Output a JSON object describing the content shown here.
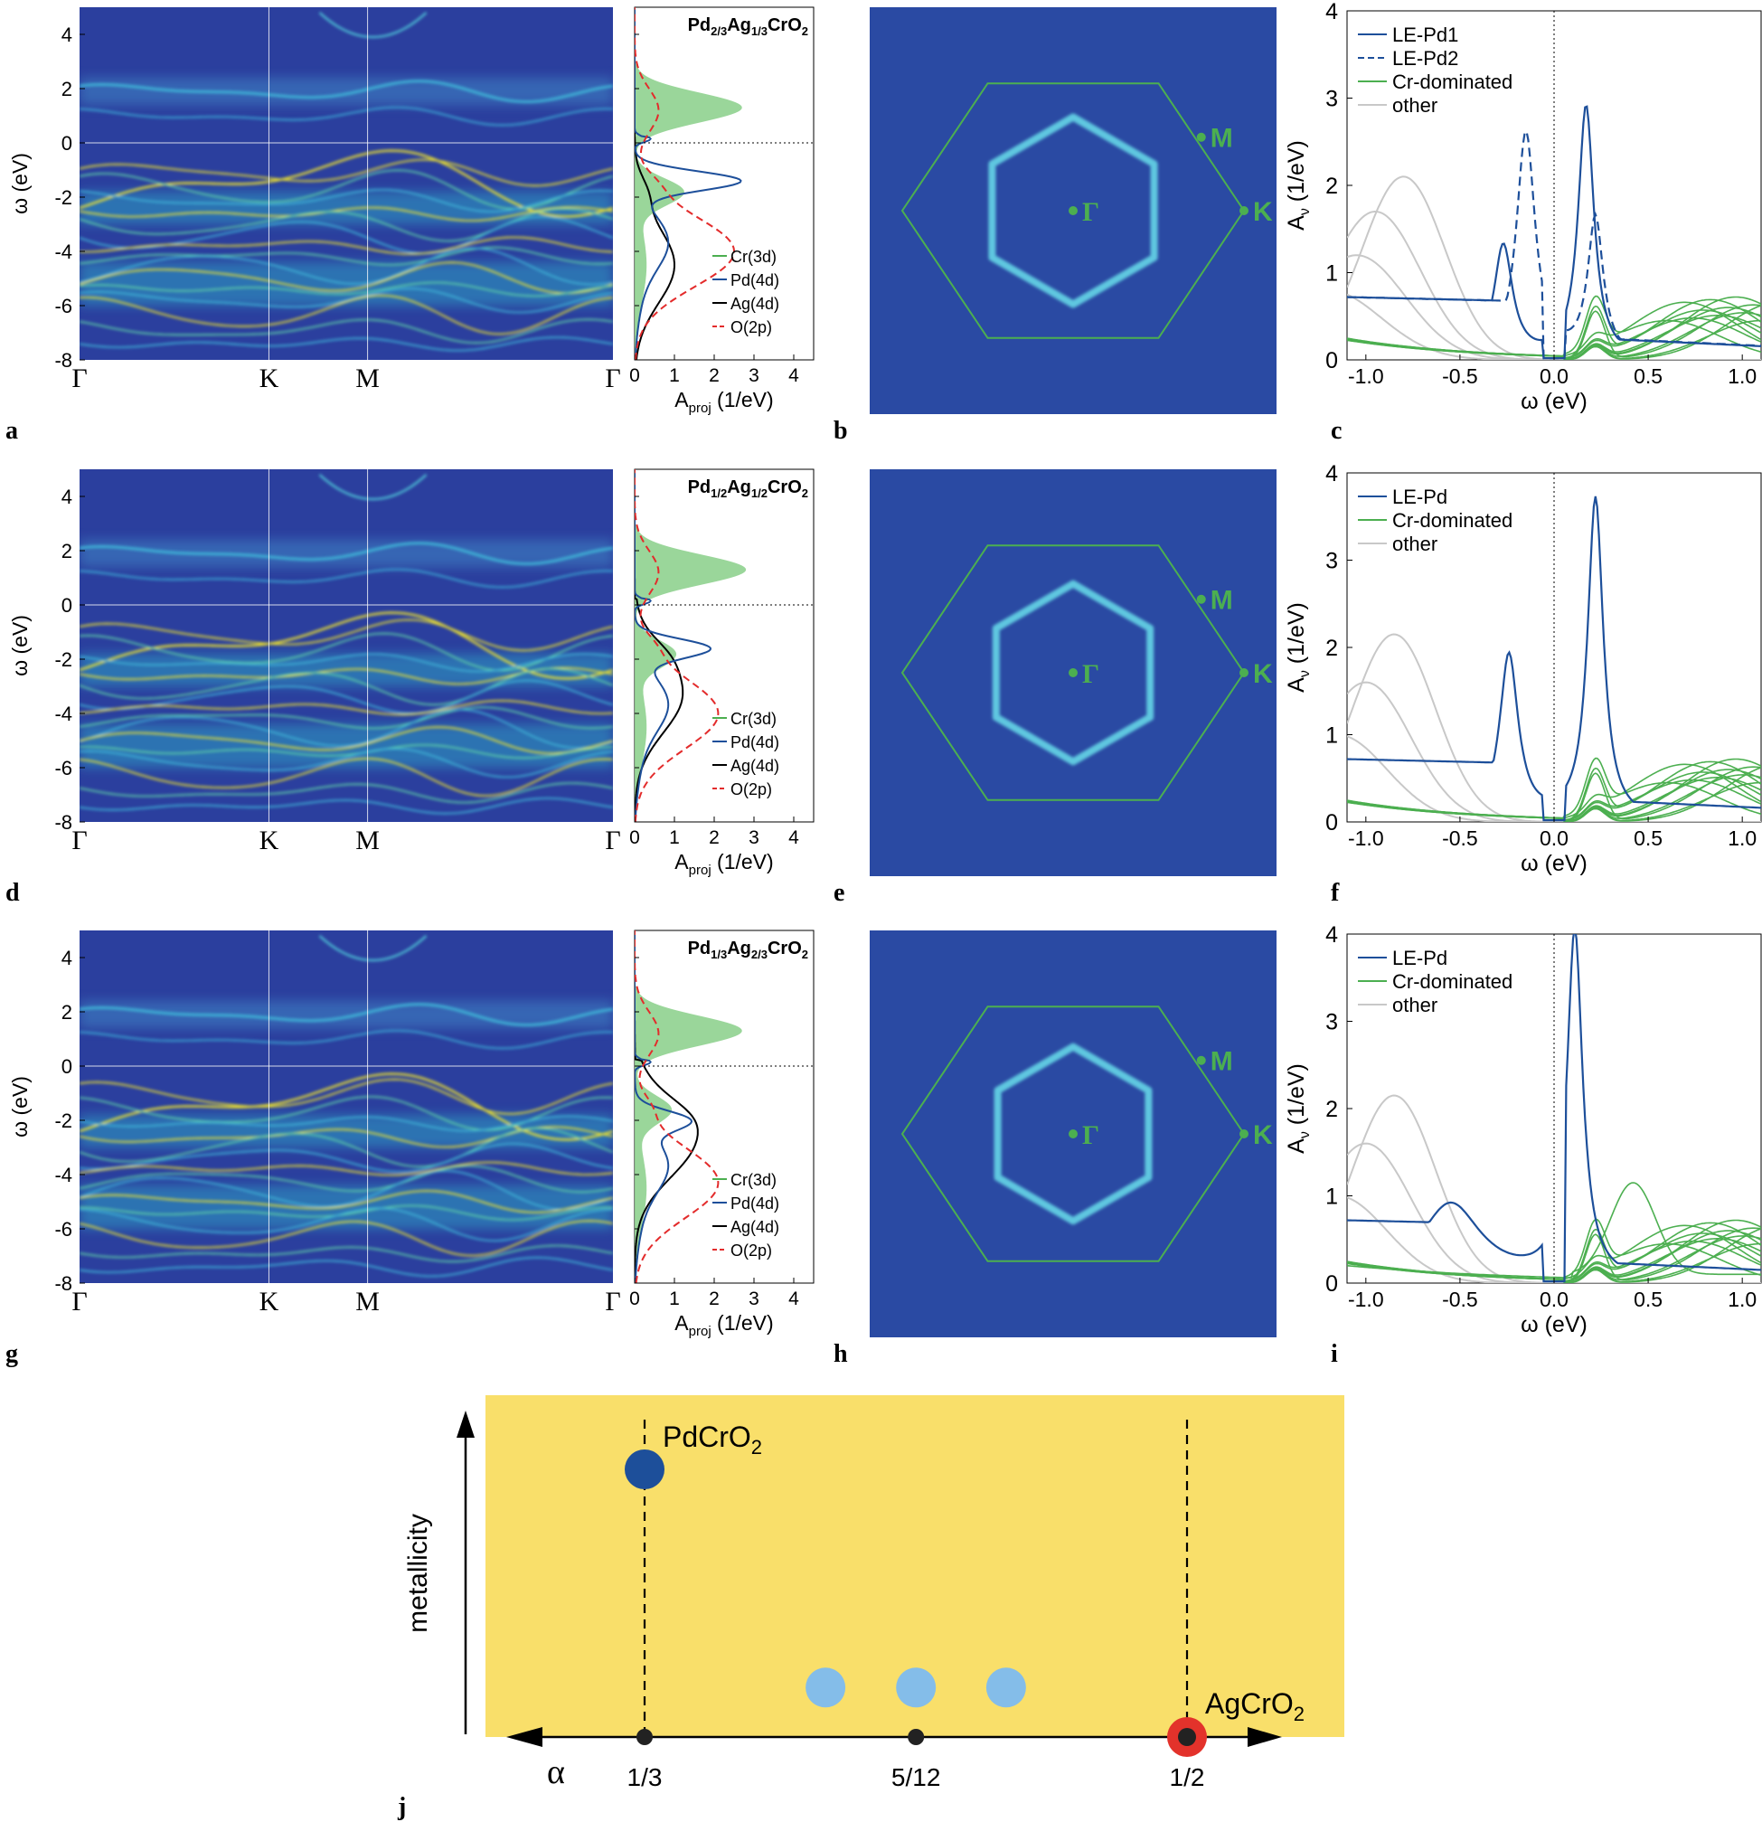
{
  "colors": {
    "band_bg": "#2b3f9e",
    "band_mid": "#3fb6d8",
    "band_hot": "#f2e62a",
    "pd": "#1d4f9a",
    "cr": "#4caf50",
    "cr_fill": "#8fd18f",
    "other": "#c8c8c8",
    "o2p": "#e32b2b",
    "bz": "#4caf50",
    "j_bg": "#f9df6a",
    "pd_marker": "#1d4f9a",
    "mid_marker": "#84bde9",
    "ag_marker": "#e3322b"
  },
  "chart_data": [
    {
      "panel": "a",
      "type": "heatmap",
      "ylabel": "ω (eV)",
      "ylim": [
        -8,
        5
      ],
      "yticks": [
        "4",
        "2",
        "0",
        "-2",
        "-4",
        "-6",
        "-8"
      ],
      "kpoints": [
        "Γ",
        "K",
        "M",
        "Γ"
      ]
    },
    {
      "panel": "a-dos",
      "type": "line",
      "title": "Pd2/3Ag1/3CrO2",
      "title_parts": [
        "Pd",
        "2/3",
        "Ag",
        "1/3",
        "CrO",
        "2"
      ],
      "xlabel": "A",
      "xlabel_sub": "proj",
      "xlabel_unit": " (1/eV)",
      "xticks": [
        "0",
        "1",
        "2",
        "3",
        "4"
      ],
      "xlim": [
        0,
        4.5
      ],
      "legend": [
        "Cr(3d)",
        "Pd(4d)",
        "Ag(4d)",
        "O(2p)"
      ],
      "peaks": {
        "cr_occ": [
          -1.8,
          1.2
        ],
        "cr_unocc": [
          1.3,
          2.7
        ],
        "pd": [
          -1.4,
          2.6
        ],
        "o2p": [
          -4.0,
          2.5
        ],
        "ag": [
          -4.5,
          1.0
        ]
      }
    },
    {
      "panel": "b",
      "type": "heatmap",
      "points": [
        "Γ",
        "M",
        "K"
      ]
    },
    {
      "panel": "c",
      "type": "line",
      "xlabel": "ω (eV)",
      "ylabel": "A",
      "ylabel_sub": "ν",
      "ylabel_unit": " (1/eV)",
      "xlim": [
        -1.1,
        1.1
      ],
      "ylim": [
        0,
        4
      ],
      "xticks": [
        "-1.0",
        "-0.5",
        "0.0",
        "0.5",
        "1.0"
      ],
      "yticks": [
        "0",
        "1",
        "2",
        "3",
        "4"
      ],
      "legend": [
        "LE-Pd1",
        "LE-Pd2",
        "Cr-dominated",
        "other"
      ],
      "series": [
        {
          "name": "LE-Pd1",
          "peaks": [
            [
              -0.27,
              1.3
            ],
            [
              0.17,
              2.9
            ]
          ]
        },
        {
          "name": "LE-Pd2",
          "peaks": [
            [
              -0.15,
              2.6
            ],
            [
              0.22,
              1.6
            ]
          ]
        }
      ]
    },
    {
      "panel": "d",
      "type": "heatmap",
      "ylabel": "ω (eV)",
      "ylim": [
        -8,
        5
      ],
      "yticks": [
        "4",
        "2",
        "0",
        "-2",
        "-4",
        "-6",
        "-8"
      ],
      "kpoints": [
        "Γ",
        "K",
        "M",
        "Γ"
      ]
    },
    {
      "panel": "d-dos",
      "type": "line",
      "title": "Pd1/2Ag1/2CrO2",
      "title_parts": [
        "Pd",
        "1/2",
        "Ag",
        "1/2",
        "CrO",
        "2"
      ],
      "xlabel": "A",
      "xlabel_sub": "proj",
      "xlabel_unit": " (1/eV)",
      "xticks": [
        "0",
        "1",
        "2",
        "3",
        "4"
      ],
      "xlim": [
        0,
        4.5
      ],
      "legend": [
        "Cr(3d)",
        "Pd(4d)",
        "Ag(4d)",
        "O(2p)"
      ],
      "peaks": {
        "cr_occ": [
          -1.8,
          1.0
        ],
        "cr_unocc": [
          1.3,
          2.8
        ],
        "pd": [
          -1.6,
          1.8
        ],
        "o2p": [
          -4.0,
          2.1
        ],
        "ag": [
          -3.3,
          1.2
        ]
      }
    },
    {
      "panel": "e",
      "type": "heatmap",
      "points": [
        "Γ",
        "M",
        "K"
      ]
    },
    {
      "panel": "f",
      "type": "line",
      "xlabel": "ω (eV)",
      "ylabel": "A",
      "ylabel_sub": "ν",
      "ylabel_unit": " (1/eV)",
      "xlim": [
        -1.1,
        1.1
      ],
      "ylim": [
        0,
        4
      ],
      "xticks": [
        "-1.0",
        "-0.5",
        "0.0",
        "0.5",
        "1.0"
      ],
      "yticks": [
        "0",
        "1",
        "2",
        "3",
        "4"
      ],
      "legend": [
        "LE-Pd",
        "Cr-dominated",
        "other"
      ],
      "series": [
        {
          "name": "LE-Pd",
          "peaks": [
            [
              -0.24,
              1.9
            ],
            [
              0.22,
              3.7
            ]
          ]
        }
      ]
    },
    {
      "panel": "g",
      "type": "heatmap",
      "ylabel": "ω (eV)",
      "ylim": [
        -8,
        5
      ],
      "yticks": [
        "4",
        "2",
        "0",
        "-2",
        "-4",
        "-6",
        "-8"
      ],
      "kpoints": [
        "Γ",
        "K",
        "M",
        "Γ"
      ]
    },
    {
      "panel": "g-dos",
      "type": "line",
      "title": "Pd1/3Ag2/3CrO2",
      "title_parts": [
        "Pd",
        "1/3",
        "Ag",
        "2/3",
        "CrO",
        "2"
      ],
      "xlabel": "A",
      "xlabel_sub": "proj",
      "xlabel_unit": " (1/eV)",
      "xticks": [
        "0",
        "1",
        "2",
        "3",
        "4"
      ],
      "xlim": [
        0,
        4.5
      ],
      "legend": [
        "Cr(3d)",
        "Pd(4d)",
        "Ag(4d)",
        "O(2p)"
      ],
      "peaks": {
        "cr_occ": [
          -1.6,
          0.9
        ],
        "cr_unocc": [
          1.3,
          2.7
        ],
        "pd": [
          -2.0,
          1.2
        ],
        "o2p": [
          -4.3,
          2.1
        ],
        "ag": [
          -2.7,
          1.5
        ]
      }
    },
    {
      "panel": "h",
      "type": "heatmap",
      "points": [
        "Γ",
        "M",
        "K"
      ]
    },
    {
      "panel": "i",
      "type": "line",
      "xlabel": "ω (eV)",
      "ylabel": "A",
      "ylabel_sub": "ν",
      "ylabel_unit": " (1/eV)",
      "xlim": [
        -1.1,
        1.1
      ],
      "ylim": [
        0,
        4
      ],
      "xticks": [
        "-1.0",
        "-0.5",
        "0.0",
        "0.5",
        "1.0"
      ],
      "yticks": [
        "0",
        "1",
        "2",
        "3",
        "4"
      ],
      "legend": [
        "LE-Pd",
        "Cr-dominated",
        "other"
      ],
      "series": [
        {
          "name": "LE-Pd",
          "peaks": [
            [
              -0.55,
              0.9
            ],
            [
              0.11,
              4.0
            ]
          ]
        }
      ]
    },
    {
      "panel": "j",
      "type": "scatter",
      "xlabel": "α",
      "ylabel": "metallicity",
      "xticks": [
        "1/3",
        "5/12",
        "1/2"
      ],
      "x_values": [
        0.3333,
        0.4167,
        0.5
      ],
      "annotations": {
        "pd_base": "PdCrO",
        "pd_sub": "2",
        "ag_base": "AgCrO",
        "ag_sub": "2"
      },
      "points": [
        {
          "name": "PdCrO2",
          "alpha": 0.3333,
          "metallicity": 0.85
        },
        {
          "name": "mixed-1",
          "alpha": 0.3889,
          "metallicity": 0.15
        },
        {
          "name": "mixed-2",
          "alpha": 0.4167,
          "metallicity": 0.15
        },
        {
          "name": "mixed-3",
          "alpha": 0.4444,
          "metallicity": 0.15
        },
        {
          "name": "AgCrO2",
          "alpha": 0.5,
          "metallicity": 0.0
        }
      ]
    }
  ],
  "panel_letters": [
    "a",
    "b",
    "c",
    "d",
    "e",
    "f",
    "g",
    "h",
    "i",
    "j"
  ]
}
